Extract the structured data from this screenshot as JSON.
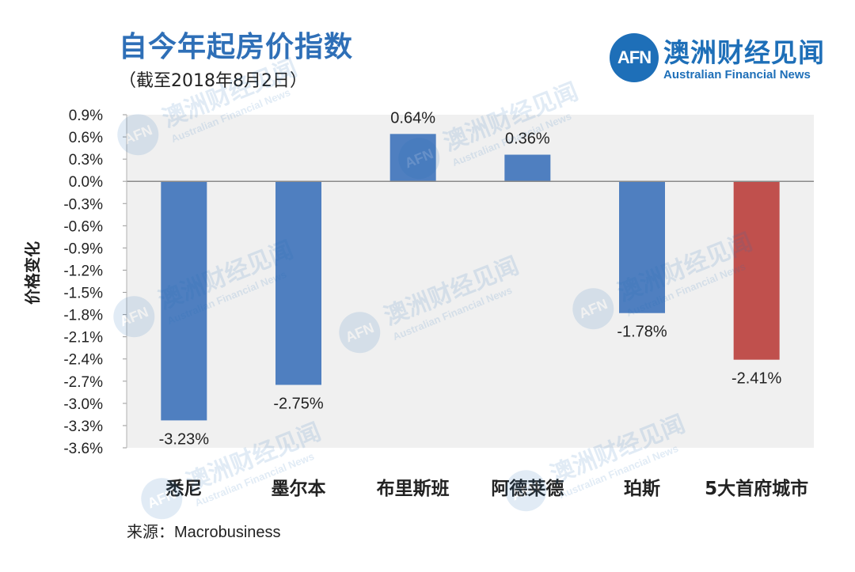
{
  "header": {
    "title": "自今年起房价指数",
    "subtitle": "（截至2018年8月2日）"
  },
  "logo": {
    "mark": "AFN",
    "name_cn": "澳洲财经见闻",
    "name_en": "Australian Financial News"
  },
  "watermark": {
    "mark": "AFN",
    "name_cn": "澳洲财经见闻",
    "name_en": "Australian Financial News"
  },
  "source": {
    "label": "来源：",
    "value": "Macrobusiness"
  },
  "colors": {
    "title": "#2e6fb7",
    "bar_blue": "#4f7fc0",
    "bar_red": "#c0504d",
    "plot_bg": "#f0f0f0"
  },
  "chart_data": {
    "type": "bar",
    "title": "自今年起房价指数",
    "subtitle": "（截至2018年8月2日）",
    "xlabel": "",
    "ylabel": "价格变化",
    "categories": [
      "悉尼",
      "墨尔本",
      "布里斯班",
      "阿德莱德",
      "珀斯",
      "5大首府城市"
    ],
    "values": [
      -3.23,
      -2.75,
      0.64,
      0.36,
      -1.78,
      -2.41
    ],
    "value_labels": [
      "-3.23%",
      "-2.75%",
      "0.64%",
      "0.36%",
      "-1.78%",
      "-2.41%"
    ],
    "bar_colors": [
      "#4f7fc0",
      "#4f7fc0",
      "#4f7fc0",
      "#4f7fc0",
      "#4f7fc0",
      "#c0504d"
    ],
    "ylim": [
      -3.6,
      0.9
    ],
    "yticks": [
      "0.9%",
      "0.6%",
      "0.3%",
      "0.0%",
      "-0.3%",
      "-0.6%",
      "-0.9%",
      "-1.2%",
      "-1.5%",
      "-1.8%",
      "-2.1%",
      "-2.4%",
      "-2.7%",
      "-3.0%",
      "-3.3%",
      "-3.6%"
    ],
    "grid": false,
    "legend": "none"
  }
}
